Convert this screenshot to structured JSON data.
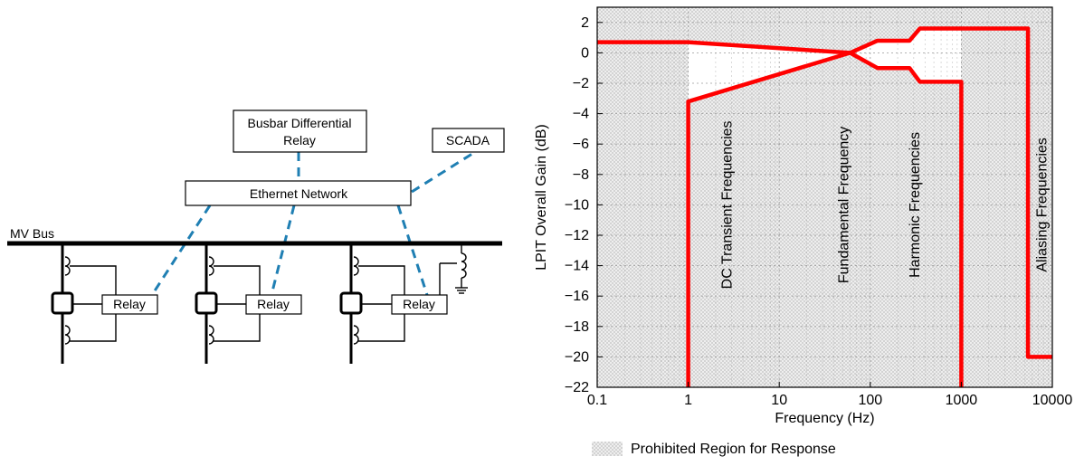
{
  "diagram": {
    "bus_label": "MV Bus",
    "busbar_relay_line1": "Busbar Differential",
    "busbar_relay_line2": "Relay",
    "scada_label": "SCADA",
    "network_label": "Ethernet Network",
    "relay_labels": [
      "Relay",
      "Relay",
      "Relay"
    ]
  },
  "chart_data": {
    "type": "line",
    "xlabel": "Frequency (Hz)",
    "ylabel": "LPIT Overall Gain (dB)",
    "x_scale": "log",
    "xlim": [
      0.1,
      10000
    ],
    "ylim": [
      -22,
      3
    ],
    "x_ticks": [
      0.1,
      1,
      10,
      100,
      1000,
      10000
    ],
    "x_tick_labels": [
      "0.1",
      "1",
      "10",
      "100",
      "1000",
      "10000"
    ],
    "y_ticks": [
      2,
      0,
      -2,
      -4,
      -6,
      -8,
      -10,
      -12,
      -14,
      -16,
      -18,
      -20,
      -22
    ],
    "y_tick_labels": [
      "2",
      "0",
      "−2",
      "−4",
      "−6",
      "−8",
      "−10",
      "−12",
      "−14",
      "−16",
      "−18",
      "−20",
      "−22"
    ],
    "grid": true,
    "colors": {
      "limit": "#ff0000",
      "region": "#d9d9d9"
    },
    "series": [
      {
        "name": "",
        "x": [
          0.1,
          1,
          60,
          120,
          270,
          350,
          5400,
          5400,
          10000
        ],
        "y": [
          0.7,
          0.7,
          0,
          0.8,
          0.8,
          1.6,
          1.6,
          -20,
          -20
        ]
      },
      {
        "name": "",
        "x": [
          1,
          1,
          60,
          120,
          270,
          350,
          1000,
          1000
        ],
        "y": [
          -22,
          -3.2,
          0,
          -1,
          -1,
          -1.9,
          -1.9,
          -22
        ]
      }
    ],
    "bands": [
      {
        "label": "DC Transient Frequencies",
        "x": 2.6
      },
      {
        "label": "Fundamental Frequency",
        "x": 50
      },
      {
        "label": "Harmonic Frequencies",
        "x": 300
      },
      {
        "label": "Aliasing Frequencies",
        "x": 7500
      }
    ],
    "legend": {
      "label": "Prohibited Region for Response",
      "position": "bottom"
    }
  }
}
